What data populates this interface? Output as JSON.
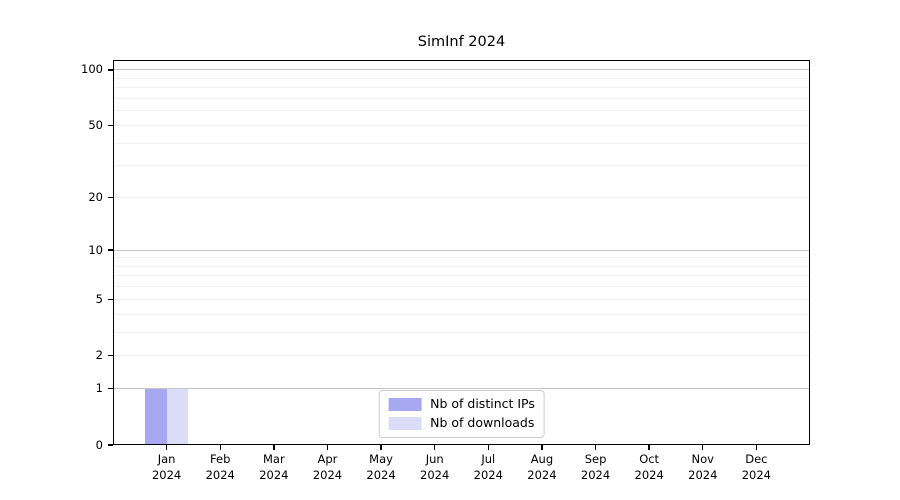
{
  "chart_data": {
    "type": "bar",
    "title": "SimInf 2024",
    "year": "2024",
    "months": [
      "Jan",
      "Feb",
      "Mar",
      "Apr",
      "May",
      "Jun",
      "Jul",
      "Aug",
      "Sep",
      "Oct",
      "Nov",
      "Dec"
    ],
    "series": [
      {
        "name": "Nb of distinct IPs",
        "color": "#a7a7f2",
        "values": [
          1,
          0,
          0,
          0,
          0,
          0,
          0,
          0,
          0,
          0,
          0,
          0
        ]
      },
      {
        "name": "Nb of downloads",
        "color": "#dcdcf9",
        "values": [
          1,
          0,
          0,
          0,
          0,
          0,
          0,
          0,
          0,
          0,
          0,
          0
        ]
      }
    ],
    "yscale": "log1p",
    "yticks": [
      0,
      1,
      2,
      5,
      10,
      20,
      50,
      100
    ],
    "ylim": [
      0,
      113
    ],
    "minor_gridlines": [
      2,
      3,
      4,
      5,
      6,
      7,
      8,
      9,
      20,
      30,
      40,
      50,
      60,
      70,
      80,
      90
    ],
    "major_gridlines": [
      1,
      10,
      100
    ],
    "legend_position": "lower center",
    "colors": {
      "background": "#ffffff",
      "spine": "#000000",
      "grid_minor": "#f0f0f0",
      "grid_major": "#c6c6c6",
      "text": "#000000"
    }
  }
}
